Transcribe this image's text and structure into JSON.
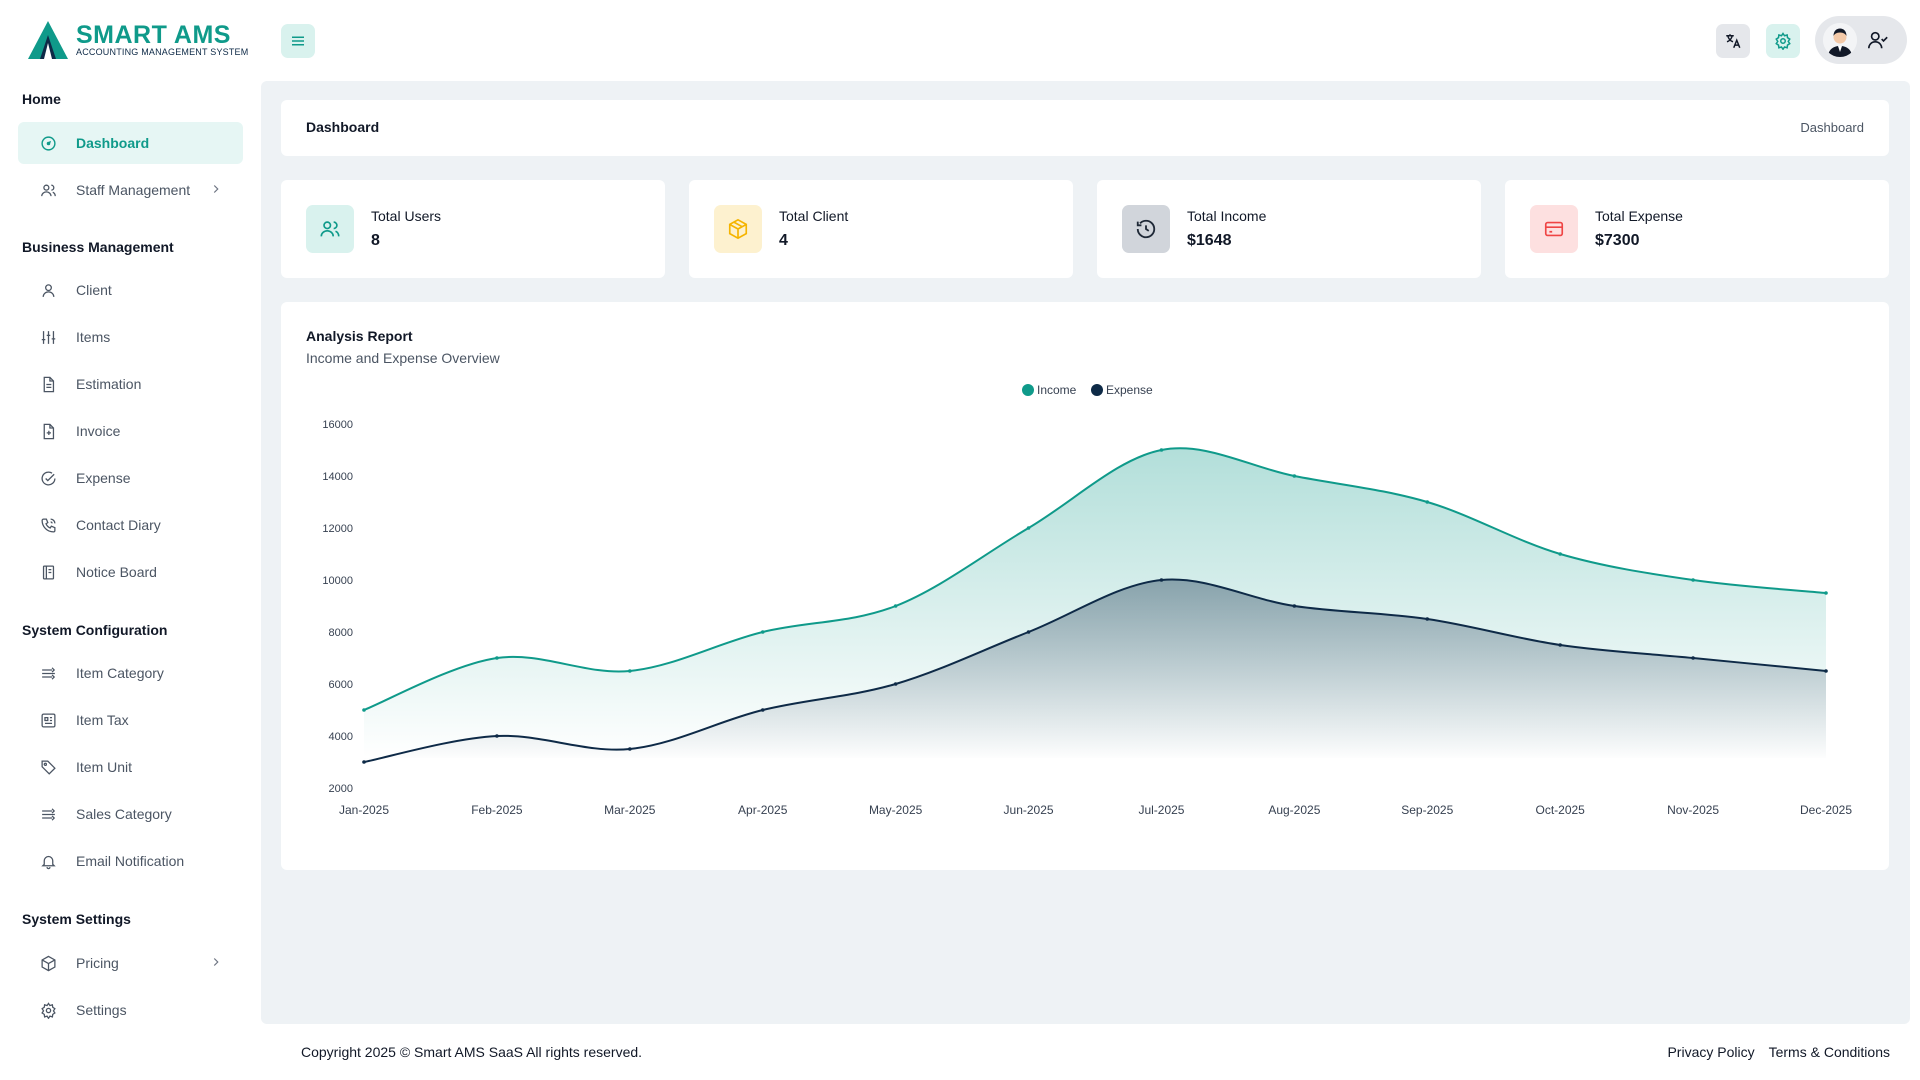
{
  "brand": {
    "name": "SMART AMS",
    "tagline": "ACCOUNTING MANAGEMENT SYSTEM",
    "accent": "#0f9a8a",
    "navy": "#0e2a47"
  },
  "sidebar": {
    "sections": [
      {
        "title": "Home",
        "items": [
          {
            "label": "Dashboard",
            "icon": "dashboard-icon",
            "active": true
          },
          {
            "label": "Staff Management",
            "icon": "users-icon",
            "chevron": true
          }
        ]
      },
      {
        "title": "Business Management",
        "items": [
          {
            "label": "Client",
            "icon": "user-icon"
          },
          {
            "label": "Items",
            "icon": "sliders-icon"
          },
          {
            "label": "Estimation",
            "icon": "file-text-icon"
          },
          {
            "label": "Invoice",
            "icon": "file-plus-icon"
          },
          {
            "label": "Expense",
            "icon": "check-circle-icon"
          },
          {
            "label": "Contact Diary",
            "icon": "phone-icon"
          },
          {
            "label": "Notice Board",
            "icon": "notebook-icon"
          }
        ]
      },
      {
        "title": "System Configuration",
        "items": [
          {
            "label": "Item Category",
            "icon": "list-arrows-icon"
          },
          {
            "label": "Item Tax",
            "icon": "receipt-icon"
          },
          {
            "label": "Item Unit",
            "icon": "tag-icon"
          },
          {
            "label": "Sales Category",
            "icon": "list-arrows-icon"
          },
          {
            "label": "Email Notification",
            "icon": "bell-icon"
          }
        ]
      },
      {
        "title": "System Settings",
        "items": [
          {
            "label": "Pricing",
            "icon": "box-icon",
            "chevron": true
          },
          {
            "label": "Settings",
            "icon": "gear-icon"
          }
        ]
      }
    ]
  },
  "header": {
    "page_title": "Dashboard",
    "breadcrumb": "Dashboard"
  },
  "stats": [
    {
      "label": "Total Users",
      "value": "8",
      "icon": "users-icon",
      "bg": "#d9f2ee",
      "fg": "#0f9a8a"
    },
    {
      "label": "Total Client",
      "value": "4",
      "icon": "box-icon",
      "bg": "#fdf1cf",
      "fg": "#f5b400"
    },
    {
      "label": "Total Income",
      "value": "$1648",
      "icon": "history-icon",
      "bg": "#d1d5db",
      "fg": "#1f2937"
    },
    {
      "label": "Total Expense",
      "value": "$7300",
      "icon": "credit-card-icon",
      "bg": "#fde0e0",
      "fg": "#ef4444"
    }
  ],
  "chart": {
    "title": "Analysis Report",
    "subtitle": "Income and Expense Overview"
  },
  "chart_data": {
    "type": "area",
    "categories": [
      "Jan-2025",
      "Feb-2025",
      "Mar-2025",
      "Apr-2025",
      "May-2025",
      "Jun-2025",
      "Jul-2025",
      "Aug-2025",
      "Sep-2025",
      "Oct-2025",
      "Nov-2025",
      "Dec-2025"
    ],
    "series": [
      {
        "name": "Income",
        "color": "#0f9a8a",
        "values": [
          5000,
          7000,
          6500,
          8000,
          9000,
          12000,
          15000,
          14000,
          13000,
          11000,
          10000,
          9500
        ]
      },
      {
        "name": "Expense",
        "color": "#0e2a47",
        "values": [
          3000,
          4000,
          3500,
          5000,
          6000,
          8000,
          10000,
          9000,
          8500,
          7500,
          7000,
          6500
        ]
      }
    ],
    "yticks": [
      2000,
      4000,
      6000,
      8000,
      10000,
      12000,
      14000,
      16000
    ],
    "ylim": [
      2000,
      16000
    ],
    "legend": "top-center",
    "grid": false
  },
  "footer": {
    "copyright": "Copyright 2025 © Smart AMS SaaS All rights reserved.",
    "links": [
      "Privacy Policy",
      "Terms & Conditions"
    ]
  }
}
